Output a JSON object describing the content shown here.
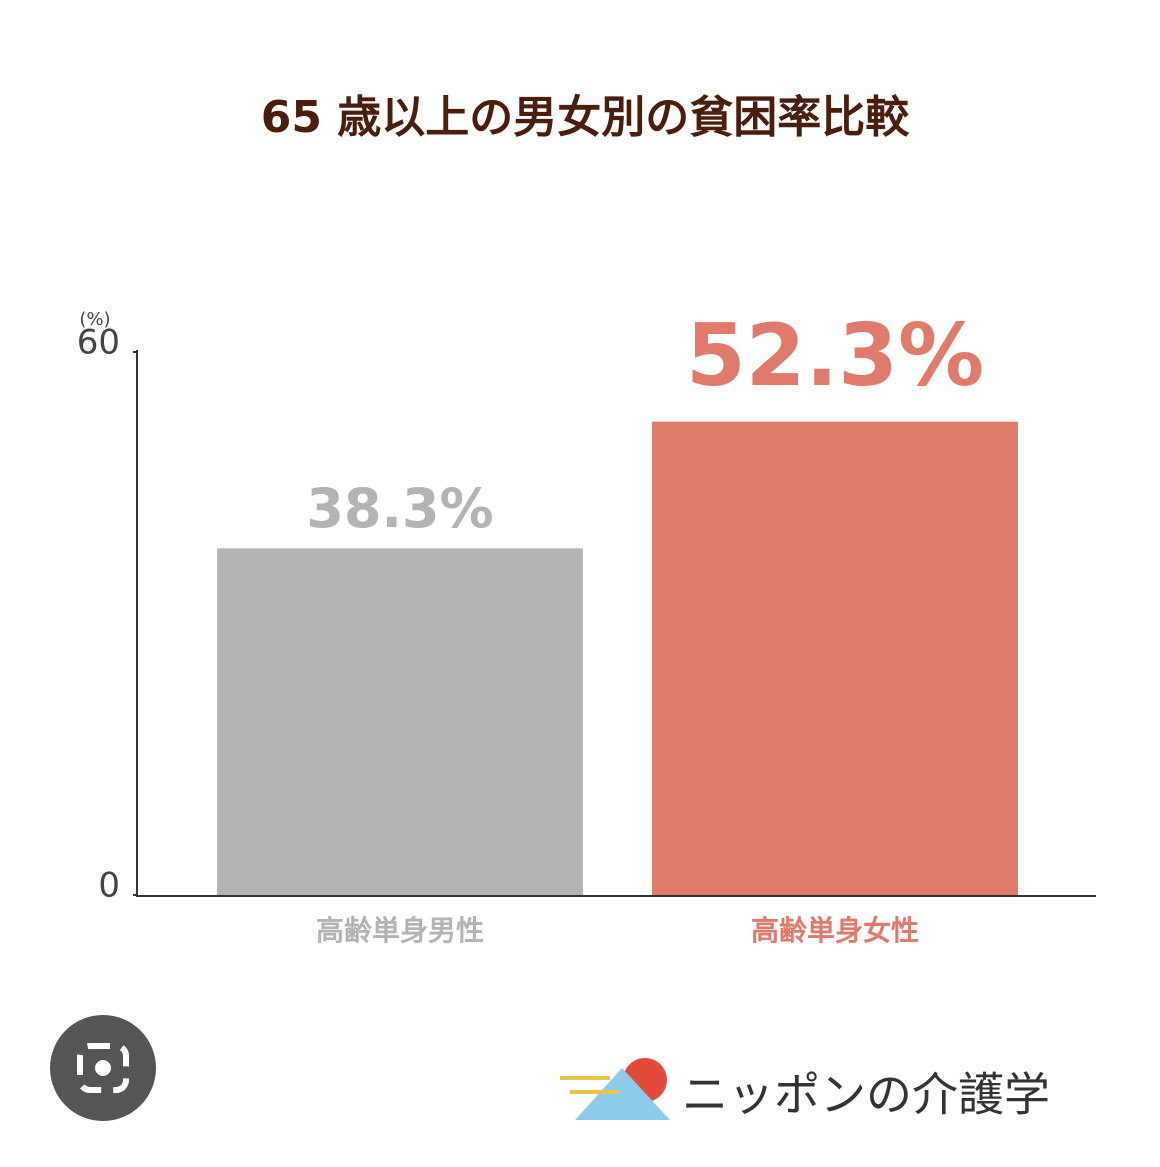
{
  "chart_data": {
    "type": "bar",
    "title": "65 歳以上の男女別の貧困率比較",
    "unit": "(%)",
    "categories": [
      "高齢単身男性",
      "高齢単身女性"
    ],
    "values": [
      38.3,
      52.3
    ],
    "value_labels": [
      "38.3%",
      "52.3%"
    ],
    "colors": [
      "#b3b3b3",
      "#e07a6c"
    ],
    "ylim": [
      0,
      60
    ],
    "yticks": [
      0,
      60
    ],
    "grid": false
  },
  "logo": "ニッポンの介護学"
}
